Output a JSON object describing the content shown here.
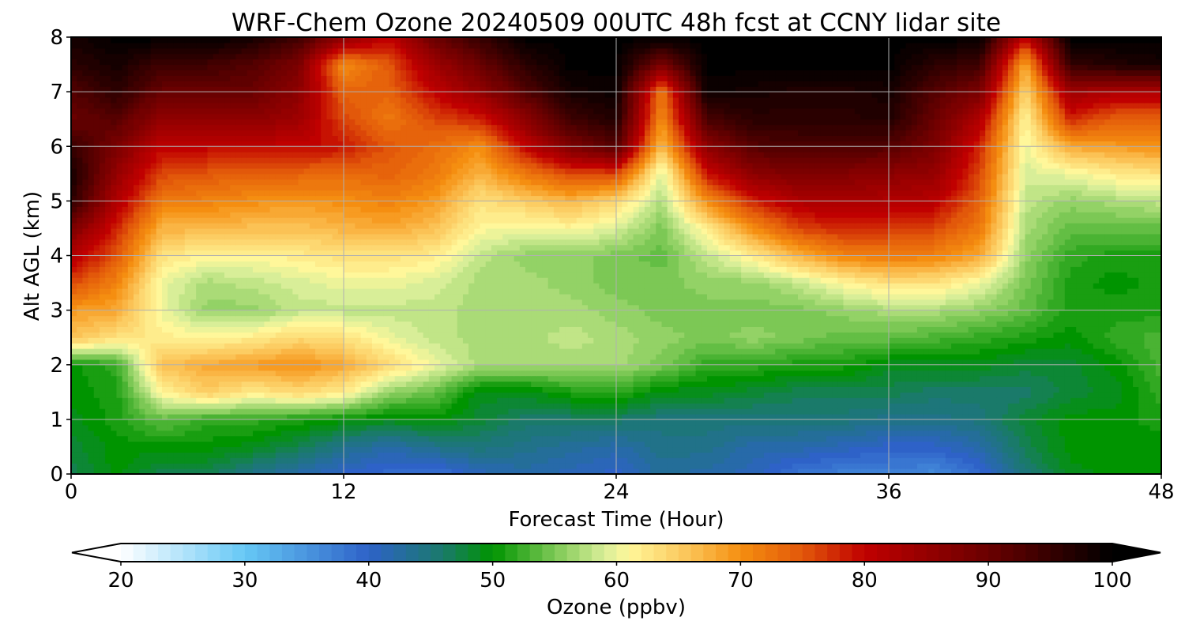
{
  "chart_data": {
    "type": "heatmap",
    "title": "WRF-Chem Ozone  20240509 00UTC 48h fcst at CCNY lidar site",
    "xlabel": "Forecast Time (Hour)",
    "ylabel": "Alt AGL (km)",
    "xlim": [
      0,
      48
    ],
    "ylim": [
      0,
      8
    ],
    "x_ticks": [
      "0",
      "12",
      "24",
      "36",
      "48"
    ],
    "y_ticks": [
      "0",
      "1",
      "2",
      "3",
      "4",
      "5",
      "6",
      "7",
      "8"
    ],
    "grid": true,
    "colorbar": {
      "label": "Ozone  (ppbv)",
      "range": [
        20,
        100
      ],
      "ticks": [
        "20",
        "30",
        "40",
        "50",
        "60",
        "70",
        "80",
        "90",
        "100"
      ],
      "extend": "both",
      "stops": [
        {
          "value": 20,
          "color": "#ffffff"
        },
        {
          "value": 30,
          "color": "#66c8f5"
        },
        {
          "value": 40,
          "color": "#2e62c8"
        },
        {
          "value": 46,
          "color": "#1a7a6a"
        },
        {
          "value": 50,
          "color": "#009400"
        },
        {
          "value": 55,
          "color": "#7cc855"
        },
        {
          "value": 59,
          "color": "#d8ee98"
        },
        {
          "value": 61,
          "color": "#fff79a"
        },
        {
          "value": 66,
          "color": "#fbc255"
        },
        {
          "value": 70,
          "color": "#f58e10"
        },
        {
          "value": 75,
          "color": "#e2580a"
        },
        {
          "value": 80,
          "color": "#c00000"
        },
        {
          "value": 90,
          "color": "#6a0000"
        },
        {
          "value": 100,
          "color": "#000000"
        }
      ]
    },
    "x_hours": [
      0,
      2,
      4,
      6,
      8,
      10,
      12,
      14,
      16,
      18,
      20,
      22,
      24,
      26,
      28,
      30,
      32,
      34,
      36,
      38,
      40,
      42,
      44,
      46,
      48
    ],
    "y_km": [
      0,
      0.5,
      1,
      1.5,
      2,
      2.5,
      3,
      3.5,
      4,
      4.5,
      5,
      5.5,
      6,
      6.5,
      7,
      7.5,
      8
    ],
    "ozone_ppbv": [
      [
        47,
        50,
        47,
        47,
        44,
        42,
        40,
        39,
        38,
        41,
        42,
        41,
        40,
        43,
        42,
        41,
        38,
        37,
        37,
        36,
        39,
        45,
        49,
        50,
        50
      ],
      [
        48,
        50,
        50,
        50,
        49,
        47,
        44,
        42,
        44,
        45,
        44,
        43,
        42,
        44,
        44,
        42,
        42,
        41,
        40,
        40,
        42,
        47,
        50,
        50,
        50
      ],
      [
        49,
        51,
        54,
        52,
        52,
        51,
        50,
        49,
        50,
        48,
        46,
        46,
        46,
        45,
        45,
        45,
        45,
        45,
        44,
        44,
        45,
        48,
        50,
        50,
        51
      ],
      [
        50,
        51,
        61,
        65,
        62,
        64,
        62,
        56,
        54,
        49,
        49,
        51,
        52,
        49,
        49,
        48,
        47,
        47,
        47,
        46,
        46,
        46,
        48,
        49,
        52
      ],
      [
        50,
        52,
        66,
        68,
        69,
        70,
        68,
        64,
        60,
        57,
        57,
        57,
        57,
        55,
        52,
        52,
        51,
        51,
        49,
        49,
        49,
        48,
        48,
        50,
        53
      ],
      [
        66,
        63,
        62,
        61,
        62,
        64,
        63,
        60,
        58,
        57,
        57,
        58,
        57,
        56,
        55,
        56,
        55,
        54,
        54,
        53,
        52,
        51,
        50,
        52,
        53
      ],
      [
        69,
        68,
        60,
        56,
        56,
        58,
        58,
        58,
        58,
        57,
        57,
        57,
        56,
        55,
        55,
        55,
        55,
        56,
        57,
        57,
        56,
        54,
        51,
        51,
        51
      ],
      [
        76,
        71,
        60,
        57,
        58,
        59,
        60,
        60,
        59,
        57,
        57,
        56,
        55,
        55,
        56,
        56,
        58,
        61,
        63,
        63,
        60,
        55,
        51,
        50,
        51
      ],
      [
        82,
        75,
        63,
        61,
        61,
        62,
        63,
        63,
        62,
        58,
        56,
        56,
        55,
        54,
        58,
        62,
        67,
        71,
        72,
        71,
        68,
        56,
        52,
        51,
        51
      ],
      [
        88,
        78,
        67,
        67,
        66,
        66,
        67,
        68,
        66,
        61,
        60,
        61,
        59,
        55,
        62,
        70,
        76,
        78,
        77,
        76,
        72,
        57,
        54,
        54,
        54
      ],
      [
        96,
        82,
        72,
        71,
        70,
        69,
        70,
        71,
        69,
        63,
        65,
        67,
        64,
        57,
        70,
        78,
        82,
        83,
        82,
        81,
        74,
        58,
        56,
        57,
        58
      ],
      [
        98,
        85,
        76,
        75,
        74,
        74,
        73,
        74,
        72,
        67,
        72,
        76,
        76,
        59,
        79,
        86,
        88,
        87,
        86,
        85,
        76,
        59,
        60,
        62,
        63
      ],
      [
        95,
        88,
        80,
        80,
        80,
        80,
        79,
        75,
        73,
        70,
        80,
        88,
        92,
        66,
        86,
        92,
        93,
        93,
        92,
        88,
        78,
        60,
        68,
        69,
        70
      ],
      [
        90,
        92,
        85,
        85,
        86,
        84,
        76,
        72,
        76,
        78,
        86,
        94,
        97,
        70,
        93,
        96,
        96,
        96,
        97,
        90,
        82,
        61,
        78,
        74,
        74
      ],
      [
        92,
        96,
        90,
        90,
        90,
        86,
        74,
        74,
        80,
        85,
        92,
        98,
        99,
        72,
        99,
        98,
        97,
        97,
        98,
        92,
        88,
        64,
        84,
        82,
        82
      ],
      [
        96,
        98,
        94,
        94,
        92,
        88,
        70,
        75,
        84,
        90,
        96,
        100,
        100,
        88,
        100,
        100,
        100,
        100,
        100,
        96,
        94,
        68,
        95,
        97,
        98
      ],
      [
        98,
        100,
        100,
        100,
        98,
        94,
        86,
        80,
        90,
        95,
        100,
        100,
        100,
        100,
        100,
        100,
        100,
        100,
        100,
        100,
        100,
        80,
        100,
        100,
        100
      ]
    ]
  }
}
